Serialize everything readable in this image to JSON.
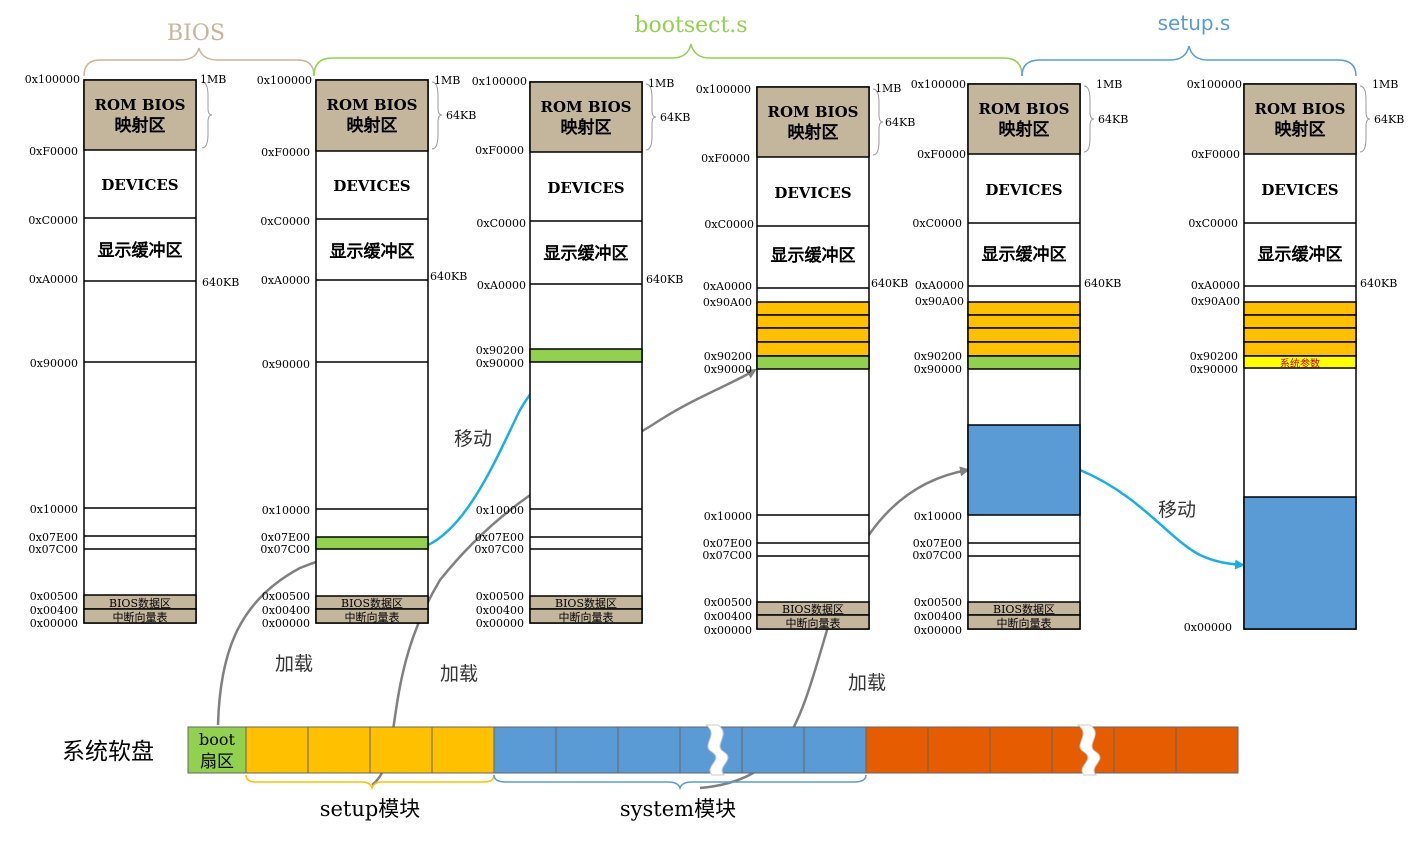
{
  "phases": {
    "bios": "BIOS",
    "bootsect": "bootsect.s",
    "setup": "setup.s"
  },
  "region_labels": {
    "rom": [
      "ROM BIOS",
      "映射区"
    ],
    "devices": "DEVICES",
    "display": "显示缓冲区",
    "bios_data": "BIOS数据区",
    "ivt": "中断向量表",
    "sys_params": "系统参数"
  },
  "size_labels": {
    "mb1": "1MB",
    "kb64": "64KB",
    "kb640": "640KB"
  },
  "addresses": {
    "a100000": "0x100000",
    "aF0000": "0xF0000",
    "aC0000": "0xC0000",
    "aA0000": "0xA0000",
    "a90A00": "0x90A00",
    "a90200": "0x90200",
    "a90000": "0x90000",
    "a10000": "0x10000",
    "a07E00": "0x07E00",
    "a07C00": "0x07C00",
    "a00500": "0x00500",
    "a00400": "0x00400",
    "a00000": "0x00000"
  },
  "arrows": {
    "move": "移动",
    "load": "加载"
  },
  "disk": {
    "label": "系统软盘",
    "boot": [
      "boot",
      "扇区"
    ],
    "setup_module": "setup模块",
    "system_module": "system模块"
  },
  "colors": {
    "rom": "#c4b59d",
    "boot": "#92d050",
    "setup": "#ffc000",
    "system": "#5b9bd5",
    "rest": "#e65c00",
    "params": "#ffff00",
    "arrow_blue": "#1aaee6",
    "arrow_gray": "#808080",
    "bios_brace": "#c8b49a",
    "bootsect_brace": "#92d050",
    "setup_brace": "#5b9bd5"
  }
}
